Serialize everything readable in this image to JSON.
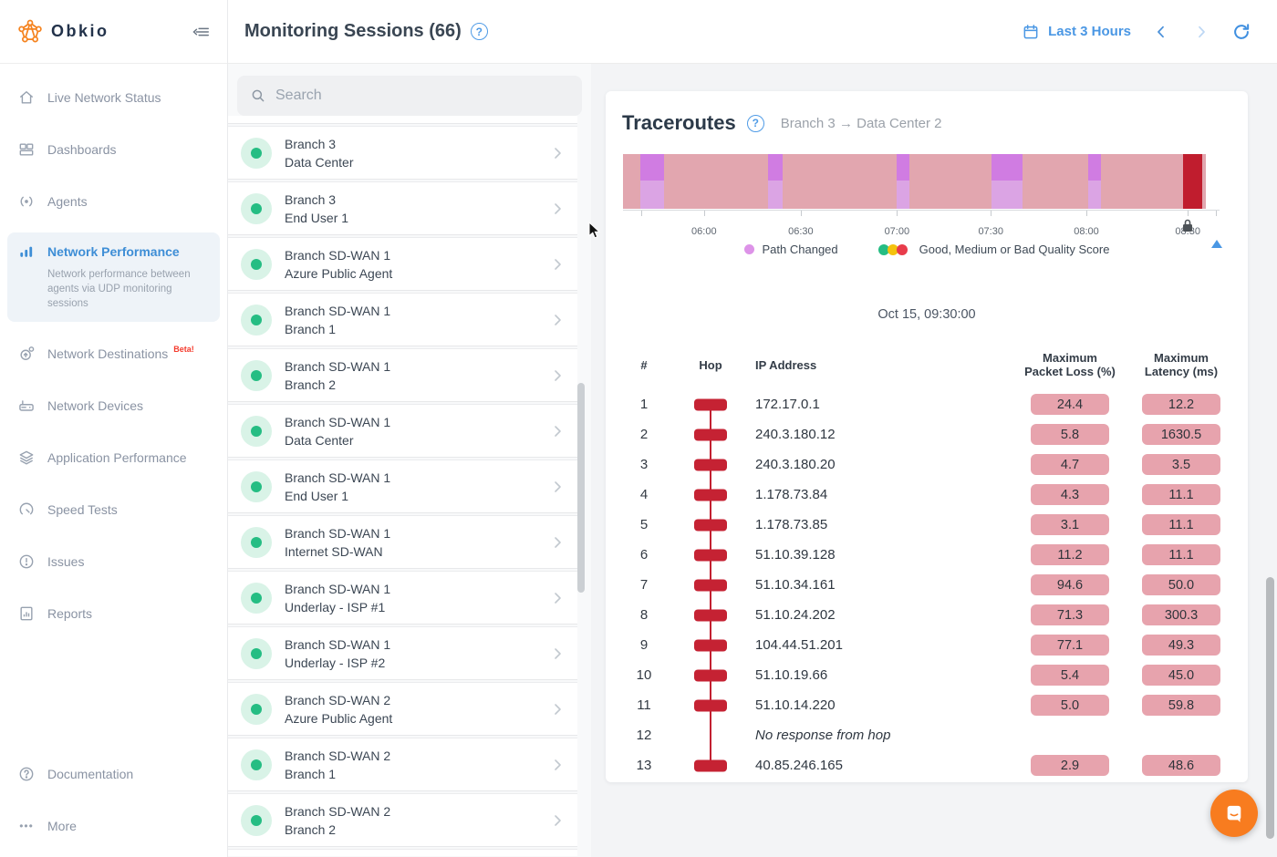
{
  "app": {
    "brand": "Obkio"
  },
  "sidebar": {
    "items": [
      {
        "label": "Live Network Status"
      },
      {
        "label": "Dashboards"
      },
      {
        "label": "Agents"
      },
      {
        "label": "Network Performance",
        "active": true,
        "description": "Network performance between agents via UDP monitoring sessions"
      },
      {
        "label": "Network Destinations",
        "badge": "Beta!"
      },
      {
        "label": "Network Devices"
      },
      {
        "label": "Application Performance"
      },
      {
        "label": "Speed Tests"
      },
      {
        "label": "Issues"
      },
      {
        "label": "Reports"
      }
    ],
    "footer": [
      {
        "label": "Documentation"
      },
      {
        "label": "More"
      }
    ]
  },
  "header": {
    "title": "Monitoring Sessions (66)",
    "controls": {
      "time_range": "Last 3 Hours"
    }
  },
  "session_list": {
    "search_placeholder": "Search",
    "sessions": [
      {
        "source": "Branch 3",
        "target": "Data Center"
      },
      {
        "source": "Branch 3",
        "target": "End User 1"
      },
      {
        "source": "Branch SD-WAN 1",
        "target": "Azure Public Agent"
      },
      {
        "source": "Branch SD-WAN 1",
        "target": "Branch 1"
      },
      {
        "source": "Branch SD-WAN 1",
        "target": "Branch 2"
      },
      {
        "source": "Branch SD-WAN 1",
        "target": "Data Center"
      },
      {
        "source": "Branch SD-WAN 1",
        "target": "End User 1"
      },
      {
        "source": "Branch SD-WAN 1",
        "target": "Internet SD-WAN"
      },
      {
        "source": "Branch SD-WAN 1",
        "target": "Underlay - ISP #1"
      },
      {
        "source": "Branch SD-WAN 1",
        "target": "Underlay - ISP #2"
      },
      {
        "source": "Branch SD-WAN 2",
        "target": "Azure Public Agent"
      },
      {
        "source": "Branch SD-WAN 2",
        "target": "Branch 1"
      },
      {
        "source": "Branch SD-WAN 2",
        "target": "Branch 2"
      }
    ]
  },
  "traceroutes": {
    "title": "Traceroutes",
    "subtitle": "Branch 3 → Data Center 2",
    "timestamp": "Oct 15, 09:30:00",
    "legend": {
      "path_changed": "Path Changed",
      "quality": "Good, Medium or Bad Quality Score"
    },
    "colors": {
      "bar": "#e2a6af",
      "path_changed": "#d07ce2",
      "bad_quality": "#c01d2e",
      "good": "#25bd83",
      "medium": "#f4c20d",
      "bad": "#e83c4b",
      "accent_blue": "#4a97e4",
      "brand_orange": "#f5831f"
    },
    "timeline": {
      "segments": [
        {
          "type": "path-changed",
          "start": 3.0,
          "end": 7.0
        },
        {
          "type": "path-changed",
          "start": 24.9,
          "end": 27.4
        },
        {
          "type": "path-changed",
          "start": 46.9,
          "end": 49.1
        },
        {
          "type": "path-changed",
          "start": 63.2,
          "end": 68.5
        },
        {
          "type": "path-changed",
          "start": 79.8,
          "end": 82.0
        },
        {
          "type": "bad-quality",
          "start": 96.1,
          "end": 99.4
        }
      ],
      "ticks": [
        {
          "label": "",
          "pos": 3.1
        },
        {
          "label": "06:00",
          "pos": 13.9
        },
        {
          "label": "06:30",
          "pos": 30.5
        },
        {
          "label": "07:00",
          "pos": 47.0
        },
        {
          "label": "07:30",
          "pos": 63.1
        },
        {
          "label": "08:00",
          "pos": 79.5
        },
        {
          "label": "08:30",
          "pos": 96.9
        },
        {
          "label": "",
          "pos": 101.7
        }
      ]
    },
    "table": {
      "headers": {
        "num": "#",
        "hop": "Hop",
        "ip": "IP Address",
        "loss_line1": "Maximum",
        "loss_line2": "Packet Loss (%)",
        "latency_line1": "Maximum",
        "latency_line2": "Latency (ms)"
      },
      "rows": [
        {
          "num": "1",
          "ip": "172.17.0.1",
          "loss": "24.4",
          "latency": "12.2"
        },
        {
          "num": "2",
          "ip": "240.3.180.12",
          "loss": "5.8",
          "latency": "1630.5"
        },
        {
          "num": "3",
          "ip": "240.3.180.20",
          "loss": "4.7",
          "latency": "3.5"
        },
        {
          "num": "4",
          "ip": "1.178.73.84",
          "loss": "4.3",
          "latency": "11.1"
        },
        {
          "num": "5",
          "ip": "1.178.73.85",
          "loss": "3.1",
          "latency": "11.1"
        },
        {
          "num": "6",
          "ip": "51.10.39.128",
          "loss": "11.2",
          "latency": "11.1"
        },
        {
          "num": "7",
          "ip": "51.10.34.161",
          "loss": "94.6",
          "latency": "50.0"
        },
        {
          "num": "8",
          "ip": "51.10.24.202",
          "loss": "71.3",
          "latency": "300.3"
        },
        {
          "num": "9",
          "ip": "104.44.51.201",
          "loss": "77.1",
          "latency": "49.3"
        },
        {
          "num": "10",
          "ip": "51.10.19.66",
          "loss": "5.4",
          "latency": "45.0"
        },
        {
          "num": "11",
          "ip": "51.10.14.220",
          "loss": "5.0",
          "latency": "59.8"
        },
        {
          "num": "12",
          "ip": "No response from hop",
          "loss": null,
          "latency": null,
          "no_response": true
        },
        {
          "num": "13",
          "ip": "40.85.246.165",
          "loss": "2.9",
          "latency": "48.6"
        }
      ]
    }
  }
}
